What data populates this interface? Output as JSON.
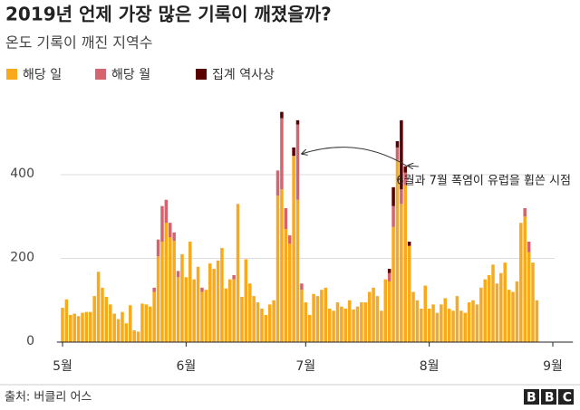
{
  "chart_data": {
    "type": "stacked-bar",
    "title": "2019년 언제 가장 많은 기록이 깨졌을까?",
    "subtitle": "온도 기록이 깨진 지역수",
    "annotation": "6월과 7월 폭염이 유럽을 휩쓴 시점",
    "categories": [
      "5월",
      null,
      null,
      null,
      null,
      null,
      null,
      null,
      null,
      null,
      null,
      null,
      null,
      null,
      null,
      null,
      null,
      null,
      null,
      null,
      null,
      null,
      null,
      null,
      null,
      null,
      null,
      null,
      null,
      null,
      null,
      "6월",
      null,
      null,
      null,
      null,
      null,
      null,
      null,
      null,
      null,
      null,
      null,
      null,
      null,
      null,
      null,
      null,
      null,
      null,
      null,
      null,
      null,
      null,
      null,
      null,
      null,
      null,
      null,
      null,
      null,
      "7월",
      null,
      null,
      null,
      null,
      null,
      null,
      null,
      null,
      null,
      null,
      null,
      null,
      null,
      null,
      null,
      null,
      null,
      null,
      null,
      null,
      null,
      null,
      null,
      null,
      null,
      null,
      null,
      null,
      null,
      null,
      "8월",
      null,
      null,
      null,
      null,
      null,
      null,
      null,
      null,
      null,
      null,
      null,
      null,
      null,
      null,
      null,
      null,
      null,
      null,
      null,
      null,
      null,
      null,
      null,
      null,
      null,
      null,
      null,
      null,
      null,
      null,
      "9월"
    ],
    "series": [
      {
        "name": "해당 일",
        "color": "#f8aa1c",
        "values": [
          82,
          102,
          65,
          68,
          62,
          70,
          72,
          72,
          110,
          168,
          130,
          108,
          90,
          68,
          55,
          72,
          45,
          88,
          28,
          25,
          92,
          90,
          85,
          120,
          205,
          240,
          285,
          250,
          242,
          155,
          210,
          155,
          240,
          150,
          180,
          120,
          125,
          188,
          175,
          195,
          225,
          128,
          150,
          150,
          330,
          108,
          198,
          140,
          110,
          95,
          80,
          65,
          90,
          100,
          350,
          365,
          270,
          235,
          445,
          340,
          125,
          95,
          65,
          115,
          110,
          125,
          130,
          80,
          75,
          95,
          85,
          80,
          100,
          78,
          85,
          95,
          95,
          120,
          130,
          110,
          75,
          150,
          145,
          275,
          435,
          330,
          375,
          230,
          120,
          100,
          80,
          135,
          80,
          90,
          70,
          90,
          105,
          80,
          75,
          110,
          75,
          70,
          95,
          100,
          90,
          130,
          150,
          160,
          185,
          140,
          165,
          190,
          125,
          120,
          145,
          285,
          300,
          215,
          190,
          100,
          null,
          null,
          null,
          null
        ]
      },
      {
        "name": "해당 월",
        "color": "#d5646e",
        "values": [
          0,
          0,
          0,
          0,
          0,
          0,
          0,
          0,
          0,
          0,
          0,
          0,
          0,
          0,
          0,
          0,
          0,
          0,
          0,
          0,
          0,
          0,
          0,
          10,
          40,
          85,
          55,
          35,
          20,
          15,
          0,
          0,
          0,
          0,
          0,
          10,
          0,
          0,
          0,
          0,
          0,
          0,
          0,
          10,
          0,
          0,
          0,
          0,
          0,
          0,
          0,
          0,
          0,
          0,
          60,
          170,
          50,
          20,
          0,
          180,
          15,
          0,
          0,
          0,
          0,
          0,
          0,
          0,
          0,
          0,
          0,
          0,
          0,
          0,
          0,
          0,
          0,
          0,
          0,
          0,
          0,
          0,
          20,
          50,
          30,
          35,
          30,
          0,
          0,
          0,
          0,
          0,
          0,
          0,
          0,
          0,
          0,
          0,
          0,
          0,
          0,
          0,
          0,
          0,
          0,
          0,
          0,
          0,
          0,
          0,
          0,
          0,
          0,
          0,
          0,
          0,
          20,
          25,
          0,
          0,
          null,
          null,
          null,
          null
        ]
      },
      {
        "name": "집계 역사상",
        "color": "#5a0000",
        "values": [
          0,
          0,
          0,
          0,
          0,
          0,
          0,
          0,
          0,
          0,
          0,
          0,
          0,
          0,
          0,
          0,
          0,
          0,
          0,
          0,
          0,
          0,
          0,
          0,
          0,
          0,
          0,
          0,
          0,
          0,
          0,
          0,
          0,
          0,
          0,
          0,
          0,
          0,
          0,
          0,
          0,
          0,
          0,
          0,
          0,
          0,
          0,
          0,
          0,
          0,
          0,
          0,
          0,
          0,
          0,
          15,
          0,
          0,
          20,
          10,
          0,
          0,
          0,
          0,
          0,
          0,
          0,
          0,
          0,
          0,
          0,
          0,
          0,
          0,
          0,
          0,
          0,
          0,
          0,
          0,
          0,
          0,
          10,
          45,
          15,
          165,
          15,
          10,
          0,
          0,
          0,
          0,
          0,
          0,
          0,
          0,
          0,
          0,
          0,
          0,
          0,
          0,
          0,
          0,
          0,
          0,
          0,
          0,
          0,
          0,
          0,
          0,
          0,
          0,
          0,
          0,
          0,
          0,
          0,
          0,
          null,
          null,
          null,
          null
        ]
      }
    ],
    "ylim": [
      0,
      560
    ],
    "yticks": [
      0,
      200,
      400
    ],
    "grid": true
  },
  "footer": {
    "source": "출처: 버클리 어스",
    "logo": "BBC"
  }
}
